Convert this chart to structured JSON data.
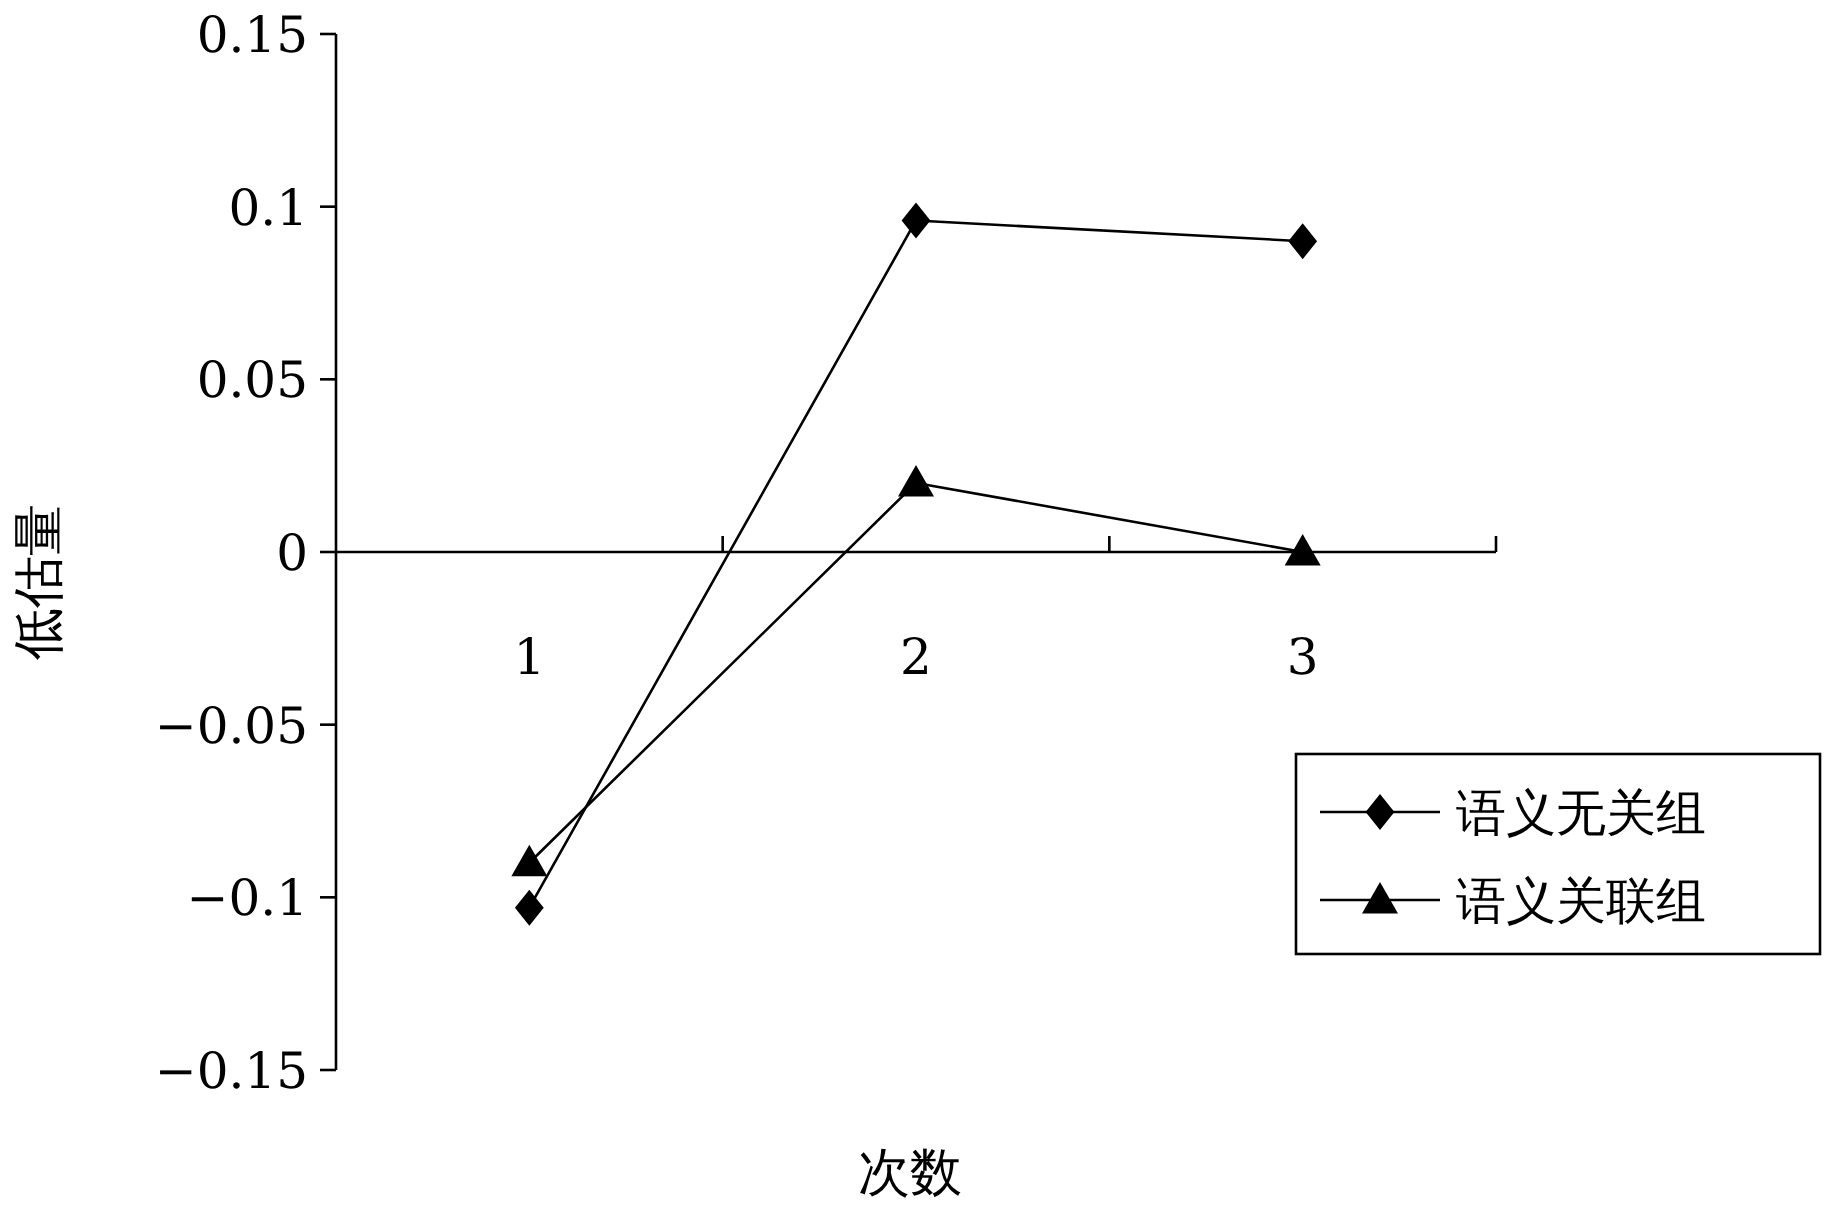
{
  "chart_data": {
    "type": "line",
    "xlabel": "次数",
    "ylabel": "低估量",
    "categories": [
      "1",
      "2",
      "3"
    ],
    "series": [
      {
        "name": "语义无关组",
        "color": "#000000",
        "marker": "diamond",
        "values": [
          -0.103,
          0.096,
          0.09
        ]
      },
      {
        "name": "语义关联组",
        "color": "#000000",
        "marker": "triangle",
        "values": [
          -0.09,
          0.02,
          0.0
        ]
      }
    ],
    "ylim": [
      -0.15,
      0.15
    ],
    "yticks": [
      {
        "value": -0.15,
        "label": "−0.15"
      },
      {
        "value": -0.1,
        "label": "−0.1"
      },
      {
        "value": -0.05,
        "label": "−0.05"
      },
      0,
      0.05,
      0.1,
      0.15
    ],
    "grid": false,
    "legend": "right",
    "line_style": "solid"
  }
}
